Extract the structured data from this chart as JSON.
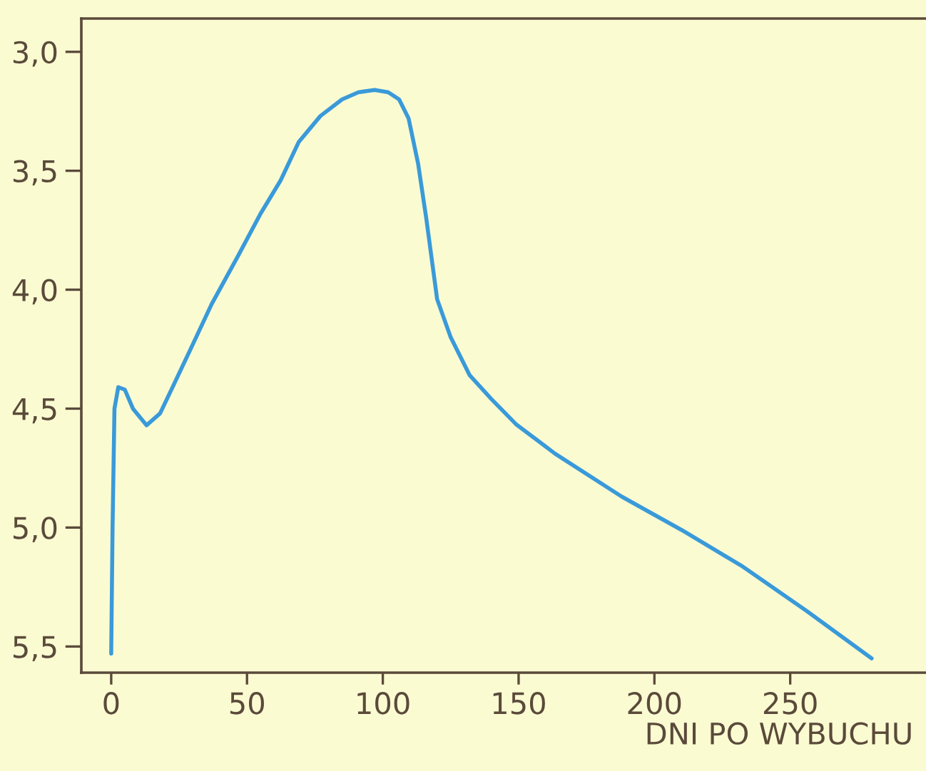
{
  "chart_data": {
    "type": "line",
    "xlabel": "DNI PO WYBUCHU",
    "x": [
      0,
      0.5,
      1.2,
      2.6,
      5,
      8,
      13,
      18,
      23,
      28.8,
      37,
      46.6,
      55,
      62.4,
      69,
      77,
      85,
      91,
      97,
      102,
      106,
      109.5,
      113,
      116,
      120,
      125,
      132,
      140,
      149,
      163.5,
      188,
      210,
      232,
      256,
      280
    ],
    "series": [
      {
        "color": "#3a9ad9",
        "values": [
          5.53,
          5.0,
          4.5,
          4.41,
          4.42,
          4.5,
          4.57,
          4.52,
          4.4,
          4.26,
          4.06,
          3.86,
          3.68,
          3.54,
          3.38,
          3.27,
          3.2,
          3.17,
          3.16,
          3.17,
          3.2,
          3.28,
          3.47,
          3.7,
          4.04,
          4.2,
          4.36,
          4.46,
          4.565,
          4.69,
          4.87,
          5.01,
          5.16,
          5.35,
          5.55
        ]
      }
    ],
    "xlim": [
      -11,
      300
    ],
    "ylim": [
      5.61,
      2.86
    ],
    "xticks": [
      0,
      50,
      100,
      150,
      200,
      250
    ],
    "yticks": [
      {
        "value": 3.0,
        "label": "3,0"
      },
      {
        "value": 3.5,
        "label": "3,5"
      },
      {
        "value": 4.0,
        "label": "4,0"
      },
      {
        "value": 4.5,
        "label": "4,5"
      },
      {
        "value": 5.0,
        "label": "5,0"
      },
      {
        "value": 5.5,
        "label": "5,5"
      }
    ],
    "grid": false,
    "legend": false,
    "marker": "none",
    "line_style": "solid"
  }
}
